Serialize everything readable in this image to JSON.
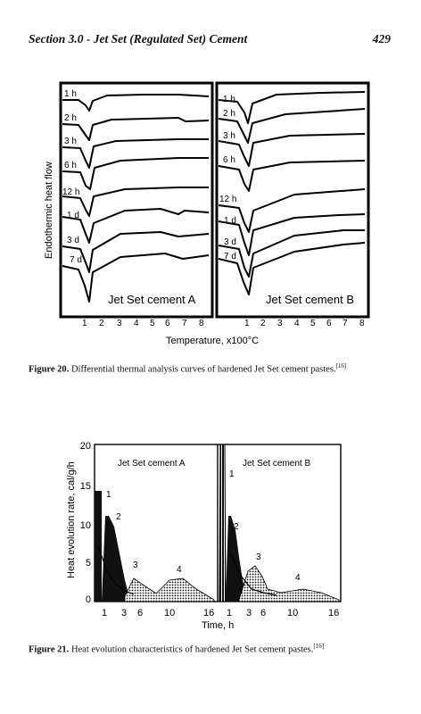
{
  "header": {
    "section": "Section 3.0 - Jet Set (Regulated Set) Cement",
    "page": "429"
  },
  "figure20": {
    "ylabel": "Endothermic heat flow",
    "xlabel": "Temperature, x100°C",
    "panels": [
      {
        "title": "Jet Set cement A",
        "curves": [
          "1 h",
          "2 h",
          "3 h",
          "6 h",
          "12 h",
          "1 d",
          "3 d",
          "7 d"
        ]
      },
      {
        "title": "Jet Set cement B",
        "curves": [
          "1 h",
          "2 h",
          "3 h",
          "6 h",
          "12 h",
          "1 d",
          "3 d",
          "7 d"
        ]
      }
    ],
    "xticks": [
      "1",
      "2",
      "3",
      "4",
      "5",
      "6",
      "7",
      "8"
    ],
    "caption_label": "Figure 20.",
    "caption_text": " Differential thermal analysis curves of hardened Jet Set cement pastes.",
    "caption_ref": "[16]"
  },
  "figure21": {
    "ylabel": "Heat evolution rate, cal/g/h",
    "xlabel": "Time, h",
    "yticks": [
      "20",
      "15",
      "10",
      "5",
      "0"
    ],
    "panels": [
      {
        "title": "Jet Set cement A",
        "xticks": [
          "1",
          "3",
          "6",
          "10",
          "16"
        ],
        "peaks": [
          "1",
          "2",
          "3",
          "4"
        ]
      },
      {
        "title": "Jet Set cement B",
        "xticks": [
          "1",
          "3",
          "6",
          "10",
          "16"
        ],
        "peaks": [
          "1",
          "2",
          "3",
          "4"
        ]
      }
    ],
    "caption_label": "Figure 21.",
    "caption_text": " Heat evolution characteristics of hardened Jet Set cement pastes.",
    "caption_ref": "[16]"
  }
}
